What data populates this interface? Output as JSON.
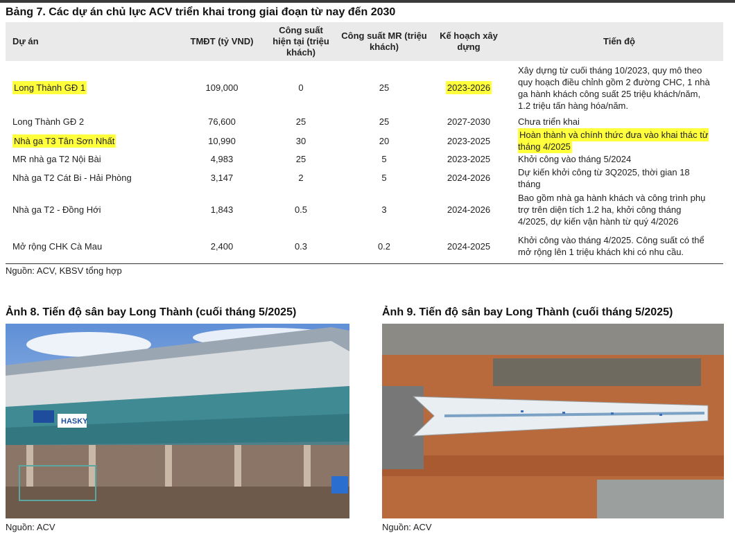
{
  "table": {
    "title": "Bảng 7. Các dự án chủ lực ACV triển khai trong giai đoạn từ nay đến 2030",
    "headers": [
      "Dự án",
      "TMĐT (tỷ VND)",
      "Công suất hiện tại (triệu khách)",
      "Công suất MR (triệu khách)",
      "Kế hoạch xây dựng",
      "Tiến độ"
    ],
    "rows": [
      [
        "Long Thành GĐ 1",
        "109,000",
        "0",
        "25",
        "2023-2026",
        "Xây dựng từ cuối tháng 10/2023, quy mô theo quy hoạch điều chỉnh gồm 2 đường CHC, 1 nhà ga hành khách công suất 25 triệu khách/năm, 1.2 triệu tấn hàng hóa/năm."
      ],
      [
        "Long Thành GĐ 2",
        "76,600",
        "25",
        "25",
        "2027-2030",
        "Chưa triển khai"
      ],
      [
        "Nhà ga T3 Tân Sơn Nhất",
        "10,990",
        "30",
        "20",
        "2023-2025",
        "Hoàn thành và chính thức đưa vào khai thác từ tháng 4/2025"
      ],
      [
        "MR nhà ga T2 Nội Bài",
        "4,983",
        "25",
        "5",
        "2023-2025",
        "Khởi công vào tháng 5/2024"
      ],
      [
        "Nhà ga T2 Cát Bi - Hải Phòng",
        "3,147",
        "2",
        "5",
        "2024-2026",
        "Dự kiến khởi công từ 3Q2025, thời gian 18 tháng"
      ],
      [
        "Nhà ga T2 - Đồng Hới",
        "1,843",
        "0.5",
        "3",
        "2024-2026",
        "Bao gồm nhà ga hành khách và công trình phụ trợ trên diện tích 1.2 ha, khởi công tháng 4/2025, dự kiến vận hành từ quý 4/2026"
      ],
      [
        "Mở rộng CHK Cà Mau",
        "2,400",
        "0.3",
        "0.2",
        "2024-2025",
        "Khởi công vào tháng 4/2025. Công suất có thể mở rộng lên 1 triệu khách khi có nhu cầu."
      ]
    ],
    "source": "Nguồn: ACV, KBSV tổng hợp"
  },
  "figures": [
    {
      "title": "Ảnh 8. Tiến độ sân bay Long Thành (cuối tháng 5/2025)",
      "source": "Nguồn: ACV"
    },
    {
      "title": "Ảnh 9. Tiến độ sân bay Long Thành (cuối tháng 5/2025)",
      "source": "Nguồn: ACV"
    }
  ]
}
